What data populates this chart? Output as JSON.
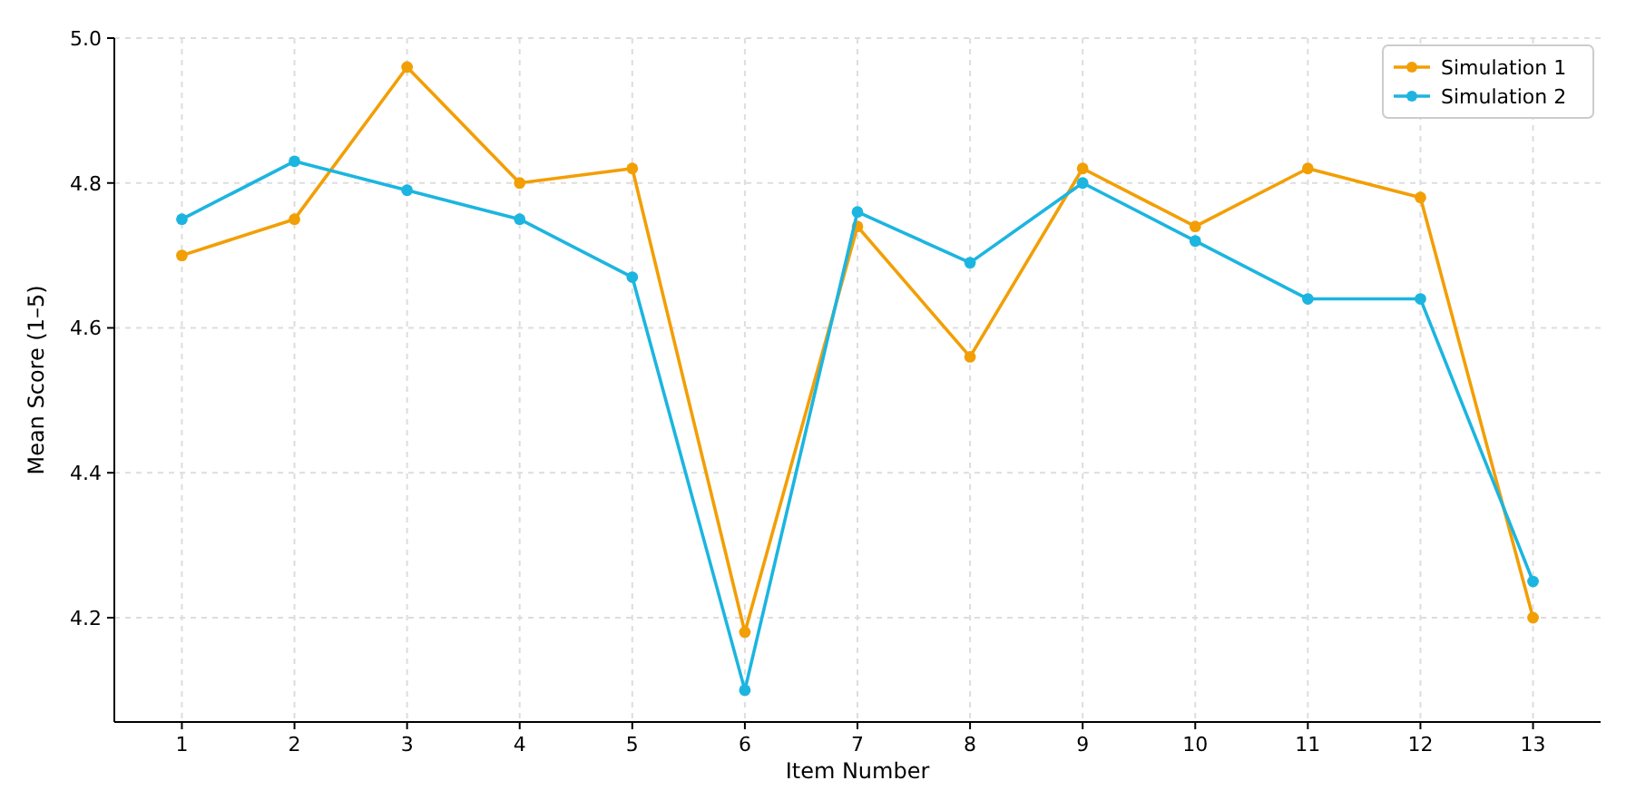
{
  "chart_data": {
    "type": "line",
    "xlabel": "Item Number",
    "ylabel": "Mean Score (1–5)",
    "x": [
      1,
      2,
      3,
      4,
      5,
      6,
      7,
      8,
      9,
      10,
      11,
      12,
      13
    ],
    "series": [
      {
        "name": "Simulation 1",
        "color": "#f29f05",
        "values": [
          4.7,
          4.75,
          4.96,
          4.8,
          4.82,
          4.18,
          4.74,
          4.56,
          4.82,
          4.74,
          4.82,
          4.78,
          4.2
        ]
      },
      {
        "name": "Simulation 2",
        "color": "#1cb5e0",
        "values": [
          4.75,
          4.83,
          4.79,
          4.75,
          4.67,
          4.1,
          4.76,
          4.69,
          4.8,
          4.72,
          4.64,
          4.64,
          4.25
        ]
      }
    ],
    "xlim": [
      0.4,
      13.6
    ],
    "xticks": [
      1,
      2,
      3,
      4,
      5,
      6,
      7,
      8,
      9,
      10,
      11,
      12,
      13
    ],
    "ylim": [
      4.056,
      5.0
    ],
    "yticks": [
      4.2,
      4.4,
      4.6,
      4.8,
      {
        "value": 5.0,
        "label": "5.0"
      }
    ],
    "grid": true,
    "legend": "top right",
    "marker": "circle",
    "line_style": "solid"
  }
}
